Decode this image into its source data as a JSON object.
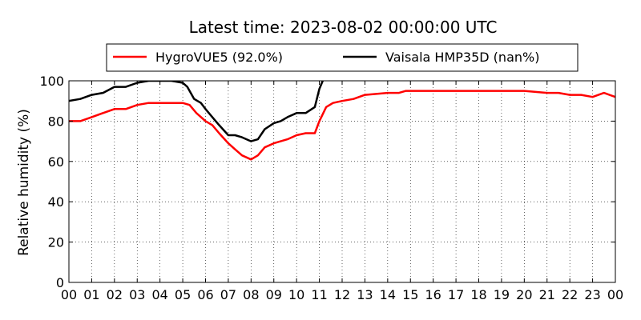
{
  "chart_data": {
    "type": "line",
    "title": "Latest time: 2023-08-02 00:00:00 UTC",
    "ylabel": "Relative humidity (%)",
    "xlabel": "",
    "ylim": [
      0,
      100
    ],
    "yticks": [
      "0",
      "20",
      "40",
      "60",
      "80",
      "100"
    ],
    "xlim": [
      0,
      24
    ],
    "xticks": [
      "00",
      "01",
      "02",
      "03",
      "04",
      "05",
      "06",
      "07",
      "08",
      "09",
      "10",
      "11",
      "12",
      "13",
      "14",
      "15",
      "16",
      "17",
      "18",
      "19",
      "20",
      "21",
      "22",
      "23",
      "00"
    ],
    "grid": true,
    "legend_placement": "top-center",
    "series": [
      {
        "name": "HygroVUE5 (92.0%)",
        "color": "#ff0000",
        "x": [
          0.0,
          0.5,
          1.0,
          1.5,
          2.0,
          2.5,
          3.0,
          3.5,
          4.0,
          4.5,
          5.0,
          5.3,
          5.6,
          6.0,
          6.3,
          6.6,
          7.0,
          7.3,
          7.6,
          8.0,
          8.3,
          8.6,
          9.0,
          9.3,
          9.6,
          10.0,
          10.4,
          10.8,
          11.0,
          11.3,
          11.6,
          12.0,
          12.5,
          13.0,
          14.0,
          14.5,
          14.8,
          15.0,
          16.0,
          17.0,
          18.0,
          19.0,
          20.0,
          21.0,
          21.5,
          22.0,
          22.5,
          23.0,
          23.5,
          24.0
        ],
        "y": [
          80,
          80,
          82,
          84,
          86,
          86,
          88,
          89,
          89,
          89,
          89,
          88,
          84,
          80,
          78,
          74,
          69,
          66,
          63,
          61,
          63,
          67,
          69,
          70,
          71,
          73,
          74,
          74,
          80,
          87,
          89,
          90,
          91,
          93,
          94,
          94,
          95,
          95,
          95,
          95,
          95,
          95,
          95,
          94,
          94,
          93,
          93,
          92,
          94,
          92
        ]
      },
      {
        "name": "Vaisala HMP35D (nan%)",
        "color": "#000000",
        "x": [
          0.0,
          0.5,
          1.0,
          1.5,
          2.0,
          2.5,
          3.0,
          3.5,
          4.0,
          4.5,
          5.0,
          5.2,
          5.5,
          5.8,
          6.0,
          6.3,
          6.6,
          7.0,
          7.3,
          7.6,
          8.0,
          8.3,
          8.6,
          9.0,
          9.3,
          9.6,
          10.0,
          10.4,
          10.8,
          11.0,
          11.15
        ],
        "y": [
          90,
          91,
          93,
          94,
          97,
          97,
          99,
          100,
          100,
          100,
          99,
          97,
          91,
          89,
          86,
          82,
          78,
          73,
          73,
          72,
          70,
          71,
          76,
          79,
          80,
          82,
          84,
          84,
          87,
          96,
          100
        ]
      }
    ]
  }
}
